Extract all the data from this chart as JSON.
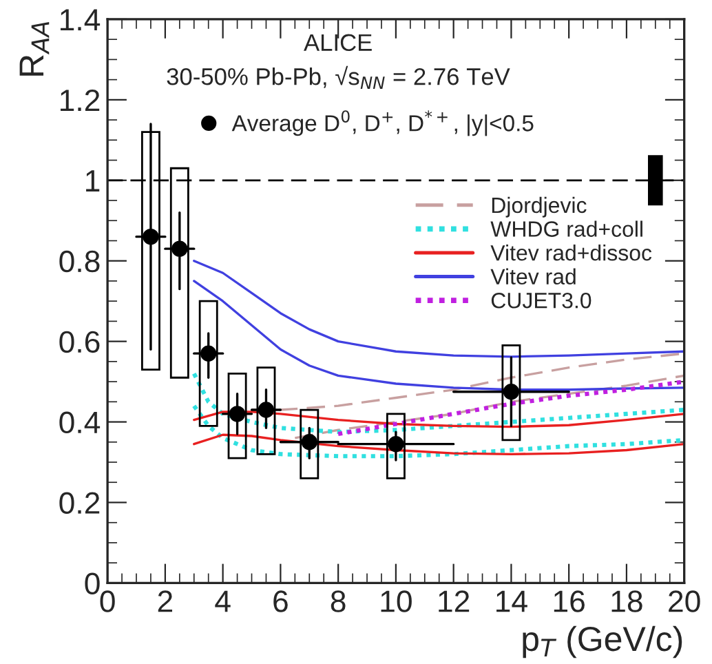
{
  "chart_data": {
    "type": "scatter",
    "xlabel": "p$_{T}$ (GeV/c)",
    "ylabel": "R$_{AA}$",
    "annotations": [
      "ALICE",
      "30-50% Pb-Pb, √s$_{NN}$ = 2.76 TeV"
    ],
    "xlim": [
      0,
      20
    ],
    "xticks": [
      0,
      2,
      4,
      6,
      8,
      10,
      12,
      14,
      16,
      18,
      20
    ],
    "ylim": [
      0,
      1.4
    ],
    "yticks": [
      0,
      0.2,
      0.4,
      0.6,
      0.8,
      1,
      1.2,
      1.4
    ],
    "ref_lines": [
      {
        "axis": "y",
        "value": 1,
        "color": "#000000",
        "line_style": "dashed"
      }
    ],
    "legend": "right",
    "grid": false,
    "series": [
      {
        "name": "Djordjevic",
        "type": "line",
        "line_style": "dashed",
        "color": "#c8a0a0",
        "x": [
          5,
          6,
          8,
          10,
          12,
          14,
          16,
          18,
          20
        ],
        "values": [
          0.43,
          0.43,
          0.44,
          0.46,
          0.48,
          0.51,
          0.535,
          0.555,
          0.57
        ]
      },
      {
        "type": "line",
        "line_style": "dashed",
        "color": "#c8a0a0",
        "x": [
          6.5,
          8,
          10,
          12,
          14,
          16,
          18,
          20
        ],
        "values": [
          0.36,
          0.38,
          0.4,
          0.42,
          0.45,
          0.47,
          0.49,
          0.515
        ]
      },
      {
        "name": "WHDG rad+coll",
        "type": "line",
        "line_style": "dotted",
        "color": "#30e0e0",
        "x": [
          3,
          3.5,
          4,
          5,
          6,
          8,
          10,
          12,
          14,
          16,
          18,
          20
        ],
        "values": [
          0.52,
          0.45,
          0.42,
          0.4,
          0.385,
          0.375,
          0.38,
          0.39,
          0.4,
          0.41,
          0.42,
          0.43
        ]
      },
      {
        "type": "line",
        "line_style": "dotted",
        "color": "#30e0e0",
        "x": [
          3,
          3.5,
          4,
          5,
          6,
          8,
          10,
          12,
          14,
          16,
          18,
          20
        ],
        "values": [
          0.44,
          0.39,
          0.36,
          0.33,
          0.32,
          0.315,
          0.315,
          0.32,
          0.33,
          0.34,
          0.345,
          0.355
        ]
      },
      {
        "name": "Vitev rad+dissoc",
        "type": "line",
        "line_style": "solid",
        "color": "#e82020",
        "x": [
          3,
          4,
          5,
          6,
          8,
          10,
          12,
          14,
          16,
          18,
          20
        ],
        "values": [
          0.405,
          0.425,
          0.425,
          0.42,
          0.405,
          0.395,
          0.39,
          0.388,
          0.392,
          0.405,
          0.42
        ]
      },
      {
        "type": "line",
        "line_style": "solid",
        "color": "#e82020",
        "x": [
          3,
          4,
          5,
          6,
          8,
          10,
          12,
          14,
          16,
          18,
          20
        ],
        "values": [
          0.345,
          0.368,
          0.365,
          0.355,
          0.34,
          0.33,
          0.322,
          0.32,
          0.322,
          0.33,
          0.345
        ]
      },
      {
        "name": "Vitev rad",
        "type": "line",
        "line_style": "solid",
        "color": "#4040e0",
        "x": [
          3,
          4,
          5,
          6,
          7,
          8,
          10,
          12,
          14,
          16,
          18,
          20
        ],
        "values": [
          0.8,
          0.77,
          0.72,
          0.67,
          0.63,
          0.6,
          0.575,
          0.565,
          0.562,
          0.565,
          0.57,
          0.575
        ]
      },
      {
        "type": "line",
        "line_style": "solid",
        "color": "#4040e0",
        "x": [
          3,
          4,
          5,
          6,
          7,
          8,
          10,
          12,
          14,
          16,
          18,
          20
        ],
        "values": [
          0.75,
          0.7,
          0.64,
          0.58,
          0.54,
          0.515,
          0.495,
          0.485,
          0.48,
          0.48,
          0.483,
          0.485
        ]
      },
      {
        "name": "CUJET3.0",
        "type": "line",
        "line_style": "dotted",
        "color": "#c020e0",
        "x": [
          8,
          10,
          12,
          14,
          16,
          18,
          20
        ],
        "values": [
          0.37,
          0.395,
          0.42,
          0.445,
          0.465,
          0.48,
          0.5
        ]
      },
      {
        "type": "bar",
        "color": "#000000",
        "x": [
          1.5,
          2.5,
          3.5,
          4.5,
          5.5,
          7,
          10,
          14
        ],
        "base": [
          0.53,
          0.51,
          0.39,
          0.31,
          0.32,
          0.26,
          0.26,
          0.355
        ],
        "values": [
          0.59,
          0.52,
          0.31,
          0.21,
          0.215,
          0.17,
          0.16,
          0.235
        ]
      },
      {
        "type": "bar",
        "colors": [
          "#000000"
        ],
        "x": [
          19
        ],
        "base": [
          0.94
        ],
        "values": [
          0.12
        ]
      },
      {
        "name": "Average D$^{0}$, D$^{+}$, D$^{*+}$, |y|<0.5",
        "marker": "circle",
        "color": "#000000",
        "x": [
          1.5,
          2.5,
          3.5,
          4.5,
          5.5,
          7,
          10,
          14
        ],
        "values": [
          0.86,
          0.83,
          0.57,
          0.42,
          0.43,
          0.35,
          0.345,
          0.475
        ],
        "errors": [
          [
            0.58,
            1.14
          ],
          [
            0.73,
            0.92
          ],
          [
            0.51,
            0.62
          ],
          [
            0.37,
            0.47
          ],
          [
            0.385,
            0.48
          ],
          [
            0.31,
            0.385
          ],
          [
            0.305,
            0.375
          ],
          [
            0.39,
            0.56
          ]
        ],
        "xerrors": [
          [
            1,
            2
          ],
          [
            2,
            3
          ],
          [
            3,
            4
          ],
          [
            4,
            5
          ],
          [
            5,
            6
          ],
          [
            6,
            8
          ],
          [
            8,
            12
          ],
          [
            12,
            16
          ]
        ]
      }
    ]
  }
}
